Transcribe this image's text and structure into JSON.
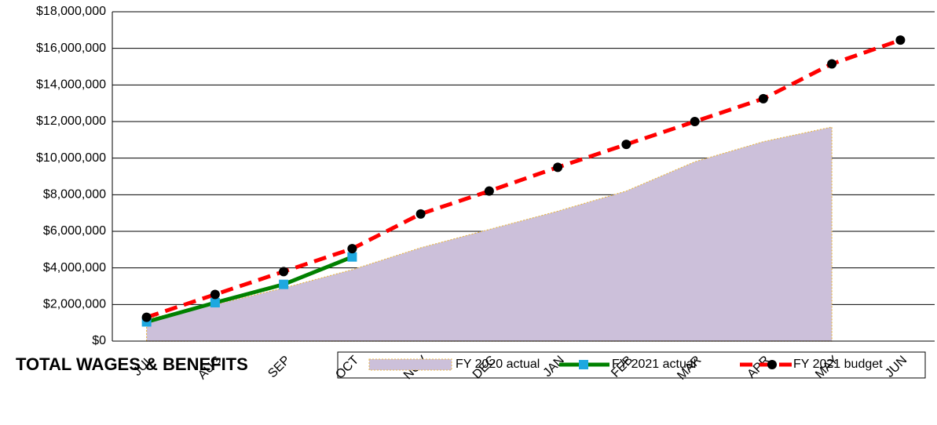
{
  "chart_data": {
    "type": "line",
    "title": "TOTAL WAGES & BENEFITS",
    "categories": [
      "JUL",
      "AUG",
      "SEP",
      "OCT",
      "NOV",
      "DEC",
      "JAN",
      "FEB",
      "MAR",
      "APR",
      "MAY",
      "JUN"
    ],
    "series": [
      {
        "name": "FY 2020 actual",
        "type": "area",
        "color": "#ccc0da",
        "values": [
          1200000,
          2000000,
          2900000,
          3900000,
          5100000,
          6100000,
          7100000,
          8200000,
          9800000,
          10900000,
          11700000,
          null
        ]
      },
      {
        "name": "FY 2021 actual",
        "type": "line",
        "color": "#008000",
        "marker_color": "#1ea8e0",
        "values": [
          1050000,
          2100000,
          3100000,
          4600000,
          null,
          null,
          null,
          null,
          null,
          null,
          null,
          null
        ]
      },
      {
        "name": "FY 2021 budget",
        "type": "dashed",
        "color": "#ff0000",
        "marker_color": "#000000",
        "values": [
          1300000,
          2550000,
          3800000,
          5050000,
          6950000,
          8200000,
          9500000,
          10750000,
          12000000,
          13250000,
          15150000,
          16450000
        ]
      }
    ],
    "ylim": [
      0,
      18000000
    ],
    "yticks": [
      {
        "value": 0,
        "label": "$0"
      },
      {
        "value": 2000000,
        "label": "$2,000,000"
      },
      {
        "value": 4000000,
        "label": "$4,000,000"
      },
      {
        "value": 6000000,
        "label": "$6,000,000"
      },
      {
        "value": 8000000,
        "label": "$8,000,000"
      },
      {
        "value": 10000000,
        "label": "$10,000,000"
      },
      {
        "value": 12000000,
        "label": "$12,000,000"
      },
      {
        "value": 14000000,
        "label": "$14,000,000"
      },
      {
        "value": 16000000,
        "label": "$16,000,000"
      },
      {
        "value": 18000000,
        "label": "$18,000,000"
      }
    ],
    "grid": true,
    "legend": "bottom-right"
  }
}
